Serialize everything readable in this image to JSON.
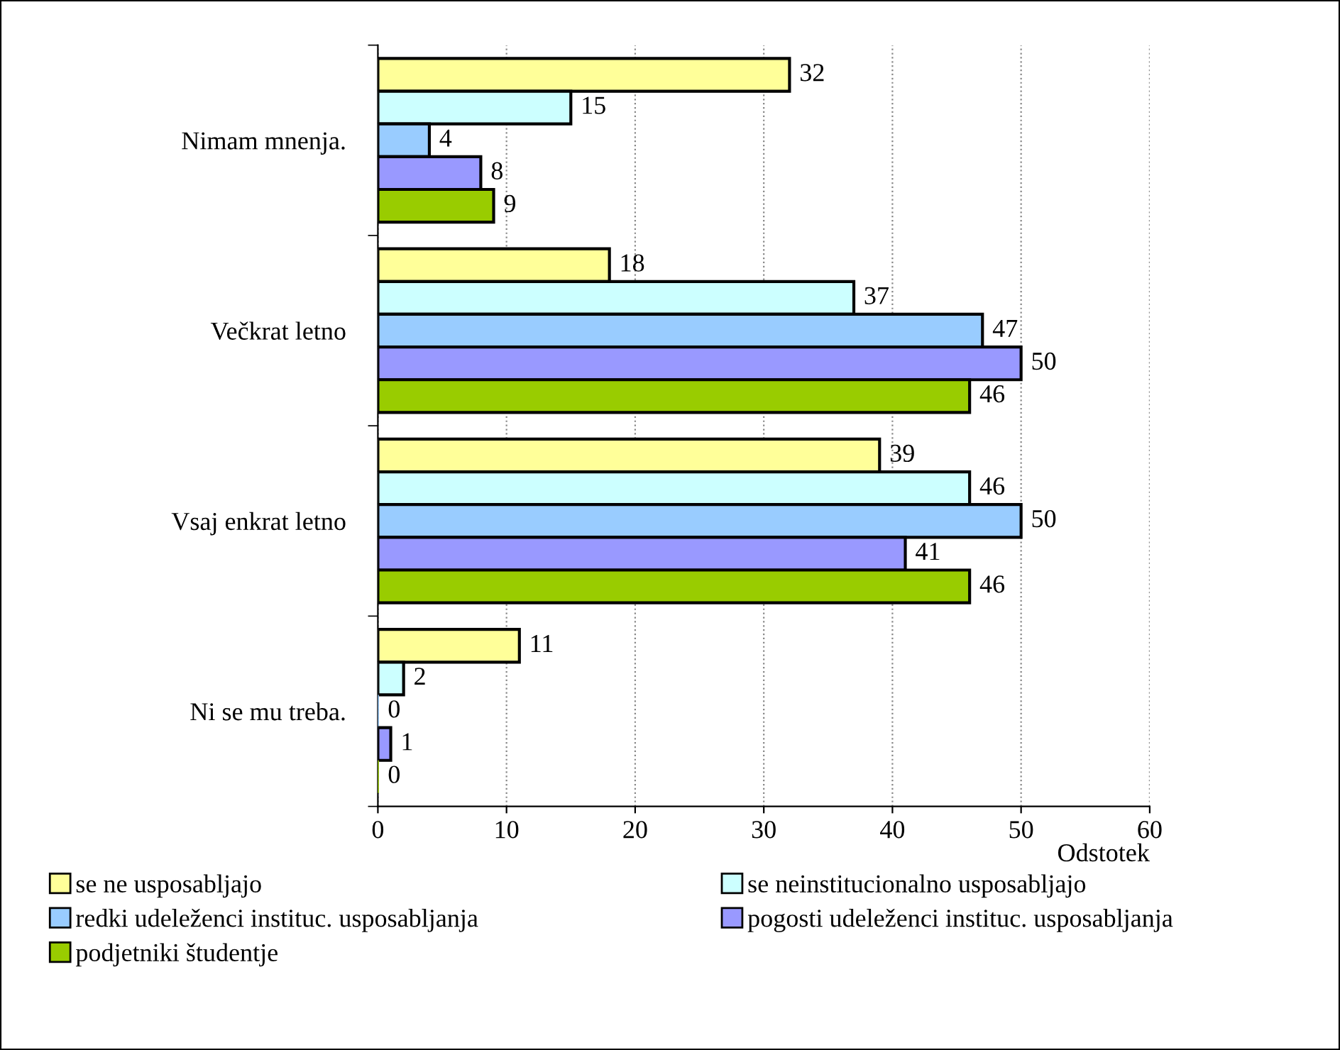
{
  "chart_data": {
    "type": "bar",
    "orientation": "horizontal",
    "xlabel": "Odstotek",
    "categories": [
      "Nimam mnenja.",
      "Večkrat letno",
      "Vsaj enkrat letno",
      "Ni se mu treba."
    ],
    "series": [
      {
        "name": "se ne usposabljajo",
        "color": "#ffff99",
        "values": [
          32,
          18,
          39,
          11
        ]
      },
      {
        "name": "se neinstitucionalno usposabljajo",
        "color": "#ccffff",
        "values": [
          15,
          37,
          46,
          2
        ]
      },
      {
        "name": "redki udeleženci instituc. usposabljanja",
        "color": "#99ccff",
        "values": [
          4,
          47,
          50,
          0
        ]
      },
      {
        "name": "pogosti udeleženci instituc. usposabljanja",
        "color": "#9999ff",
        "values": [
          8,
          50,
          41,
          1
        ]
      },
      {
        "name": "podjetniki študentje",
        "color": "#99cc00",
        "values": [
          9,
          46,
          46,
          0
        ]
      }
    ],
    "xlim": [
      0,
      60
    ],
    "xticks": [
      0,
      10,
      20,
      30,
      40,
      50,
      60
    ],
    "grid": "x",
    "legend": "bottom",
    "data_labels": true
  }
}
